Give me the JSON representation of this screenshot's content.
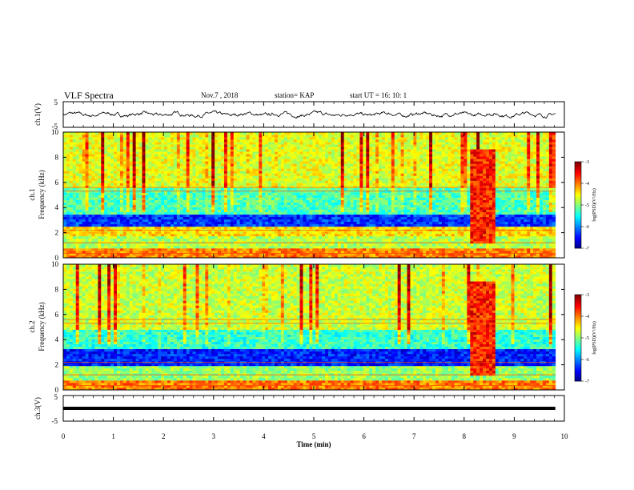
{
  "header": {
    "title": "VLF Spectra",
    "date": "Nov.7 , 2018",
    "station": "station= KAP",
    "start": "start  UT =   16: 10: 1"
  },
  "chart_data": [
    {
      "type": "line",
      "name": "waveform-ch1",
      "ylabel": "ch.1(V)",
      "ylim": [
        -5,
        5
      ],
      "yticks": [
        "5",
        "-5"
      ],
      "xlim": [
        0,
        10
      ],
      "note_values": "waveform amplitude fluctuates roughly between -1.5 and 1.5 V",
      "y_range_observed": [
        -1.5,
        1.5
      ]
    },
    {
      "type": "heatmap",
      "name": "spectrogram-ch1",
      "ylabel": "ch.1\nFrequency (kHz)",
      "ylim": [
        0,
        10
      ],
      "yticks": [
        "0",
        "2",
        "4",
        "6",
        "8",
        "10"
      ],
      "xlim": [
        0,
        10
      ],
      "colorbar": {
        "label": "log(PSD)(V²/Hz)",
        "range": [
          -7,
          -3
        ],
        "ticks": [
          "-3",
          "-4",
          "-5",
          "-6",
          "-7"
        ]
      },
      "bands": [
        {
          "f0": 0,
          "f1": 0.6,
          "level": -4.0
        },
        {
          "f0": 0.6,
          "f1": 1.6,
          "level": -4.8
        },
        {
          "f0": 1.6,
          "f1": 2.4,
          "level": -4.4
        },
        {
          "f0": 2.4,
          "f1": 3.4,
          "level": -6.3
        },
        {
          "f0": 3.4,
          "f1": 5.4,
          "level": -5.2
        },
        {
          "f0": 5.4,
          "f1": 10,
          "level": -4.6
        }
      ],
      "event": {
        "t0": 8.1,
        "t1": 8.6,
        "level": -3.6
      }
    },
    {
      "type": "heatmap",
      "name": "spectrogram-ch2",
      "ylabel": "ch.2\nFrequency (kHz)",
      "ylim": [
        0,
        10
      ],
      "yticks": [
        "0",
        "2",
        "4",
        "6",
        "8",
        "10"
      ],
      "xlim": [
        0,
        10
      ],
      "colorbar": {
        "label": "log(PSD)(V²/Hz)",
        "range": [
          -7,
          -3
        ],
        "ticks": [
          "-3",
          "-4",
          "-5",
          "-6",
          "-7"
        ]
      },
      "bands": [
        {
          "f0": 0,
          "f1": 0.6,
          "level": -4.0
        },
        {
          "f0": 0.6,
          "f1": 1.8,
          "level": -4.9
        },
        {
          "f0": 1.8,
          "f1": 3.2,
          "level": -6.4
        },
        {
          "f0": 3.2,
          "f1": 4.8,
          "level": -5.3
        },
        {
          "f0": 4.8,
          "f1": 10,
          "level": -4.7
        }
      ],
      "event": {
        "t0": 8.1,
        "t1": 8.6,
        "level": -3.6
      }
    },
    {
      "type": "line",
      "name": "waveform-ch3",
      "ylabel": "ch.3(V)",
      "ylim": [
        -5,
        5
      ],
      "yticks": [
        "5",
        "-5"
      ],
      "xlim": [
        0,
        10
      ],
      "y_range_observed": [
        -0.3,
        0.3
      ]
    }
  ],
  "xaxis": {
    "label": "Time  (min)",
    "ticks": [
      "0",
      "1",
      "2",
      "3",
      "4",
      "5",
      "6",
      "7",
      "8",
      "9",
      "10"
    ],
    "data_end": 9.82
  }
}
